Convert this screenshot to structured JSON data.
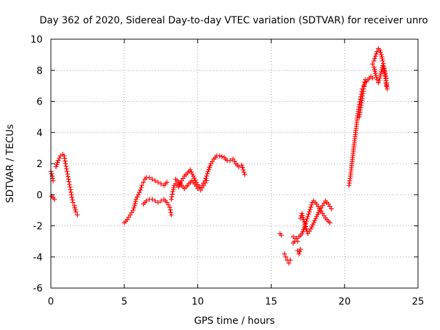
{
  "chart_data": {
    "type": "scatter",
    "title": "Day 362 of 2020, Sidereal Day-to-day VTEC variation (SDTVAR) for receiver unro",
    "xlabel": "GPS time / hours",
    "ylabel": "SDTVAR / TECUs",
    "xlim": [
      0,
      25
    ],
    "ylim": [
      -6,
      10
    ],
    "xticks": [
      0,
      5,
      10,
      15,
      20,
      25
    ],
    "yticks": [
      -6,
      -4,
      -2,
      0,
      2,
      4,
      6,
      8,
      10
    ],
    "grid": true,
    "marker": "+",
    "color": "#ff0000",
    "series": [
      {
        "name": "SDTVAR",
        "segments": [
          [
            [
              0.0,
              1.5
            ],
            [
              0.1,
              1.2
            ],
            [
              0.15,
              0.9
            ]
          ],
          [
            [
              0.05,
              -0.1
            ],
            [
              0.15,
              -0.2
            ],
            [
              0.25,
              -0.3
            ]
          ],
          [
            [
              0.35,
              1.8
            ],
            [
              0.5,
              2.2
            ],
            [
              0.65,
              2.5
            ],
            [
              0.8,
              2.6
            ],
            [
              0.9,
              2.5
            ],
            [
              1.0,
              2.0
            ],
            [
              1.1,
              1.5
            ],
            [
              1.2,
              1.0
            ],
            [
              1.3,
              0.5
            ],
            [
              1.4,
              0.0
            ],
            [
              1.5,
              -0.5
            ],
            [
              1.6,
              -0.7
            ],
            [
              1.7,
              -1.1
            ],
            [
              1.8,
              -1.3
            ]
          ],
          [
            [
              5.0,
              -1.8
            ],
            [
              5.2,
              -1.6
            ],
            [
              5.4,
              -1.3
            ],
            [
              5.6,
              -1.0
            ],
            [
              5.7,
              -0.7
            ],
            [
              5.8,
              -0.3
            ],
            [
              5.95,
              0.0
            ],
            [
              6.1,
              0.3
            ],
            [
              6.2,
              0.6
            ],
            [
              6.3,
              0.8
            ],
            [
              6.4,
              1.0
            ],
            [
              6.5,
              1.1
            ],
            [
              6.7,
              1.1
            ],
            [
              6.9,
              1.0
            ],
            [
              7.1,
              0.9
            ],
            [
              7.3,
              0.8
            ],
            [
              7.5,
              0.7
            ],
            [
              7.7,
              0.6
            ],
            [
              7.9,
              0.8
            ]
          ],
          [
            [
              6.3,
              -0.6
            ],
            [
              6.5,
              -0.4
            ],
            [
              6.7,
              -0.3
            ],
            [
              6.9,
              -0.3
            ],
            [
              7.1,
              -0.4
            ],
            [
              7.3,
              -0.5
            ],
            [
              7.5,
              -0.4
            ],
            [
              7.7,
              -0.3
            ],
            [
              7.9,
              -0.5
            ],
            [
              8.1,
              -0.8
            ],
            [
              8.2,
              -1.3
            ]
          ],
          [
            [
              8.2,
              -0.3
            ],
            [
              8.3,
              0.2
            ],
            [
              8.4,
              0.6
            ],
            [
              8.5,
              0.7
            ],
            [
              8.7,
              0.5
            ],
            [
              8.9,
              0.9
            ],
            [
              9.1,
              1.2
            ],
            [
              9.3,
              1.4
            ],
            [
              9.5,
              1.6
            ],
            [
              9.7,
              1.2
            ],
            [
              9.9,
              0.8
            ],
            [
              10.1,
              0.5
            ],
            [
              10.3,
              0.6
            ],
            [
              10.5,
              0.9
            ],
            [
              10.7,
              1.5
            ],
            [
              10.9,
              2.0
            ],
            [
              11.1,
              2.3
            ],
            [
              11.3,
              2.5
            ],
            [
              11.5,
              2.5
            ],
            [
              11.8,
              2.4
            ],
            [
              12.0,
              2.2
            ],
            [
              12.2,
              2.2
            ]
          ],
          [
            [
              8.5,
              1.0
            ],
            [
              8.7,
              0.8
            ],
            [
              8.9,
              0.6
            ],
            [
              9.1,
              0.4
            ],
            [
              9.3,
              0.6
            ],
            [
              9.6,
              0.9
            ],
            [
              9.8,
              0.7
            ],
            [
              10.0,
              0.4
            ],
            [
              10.2,
              0.3
            ],
            [
              10.4,
              0.6
            ],
            [
              10.6,
              0.9
            ]
          ],
          [
            [
              12.4,
              2.3
            ],
            [
              12.6,
              2.0
            ],
            [
              12.8,
              1.8
            ],
            [
              13.0,
              1.9
            ],
            [
              13.1,
              1.6
            ],
            [
              13.2,
              1.3
            ]
          ],
          [
            [
              15.6,
              -2.5
            ],
            [
              15.7,
              -2.6
            ]
          ],
          [
            [
              15.9,
              -3.8
            ],
            [
              16.0,
              -4.0
            ],
            [
              16.1,
              -4.2
            ],
            [
              16.2,
              -4.4
            ],
            [
              16.3,
              -4.2
            ]
          ],
          [
            [
              16.5,
              -3.1
            ],
            [
              16.6,
              -3.0
            ],
            [
              16.7,
              -2.8
            ],
            [
              16.8,
              -3.0
            ]
          ],
          [
            [
              16.5,
              -2.7
            ],
            [
              16.7,
              -2.8
            ],
            [
              16.9,
              -2.7
            ],
            [
              17.1,
              -2.5
            ],
            [
              17.3,
              -2.0
            ],
            [
              17.5,
              -1.4
            ],
            [
              17.7,
              -0.8
            ],
            [
              17.8,
              -0.5
            ],
            [
              17.9,
              -0.4
            ],
            [
              18.1,
              -0.6
            ],
            [
              18.3,
              -0.9
            ],
            [
              18.5,
              -1.2
            ],
            [
              18.7,
              -1.5
            ],
            [
              18.9,
              -1.7
            ],
            [
              19.0,
              -1.8
            ]
          ],
          [
            [
              16.8,
              -3.6
            ],
            [
              16.9,
              -3.8
            ],
            [
              17.0,
              -3.5
            ]
          ],
          [
            [
              17.0,
              -1.5
            ],
            [
              17.1,
              -1.2
            ],
            [
              17.2,
              -1.6
            ],
            [
              17.3,
              -1.9
            ],
            [
              17.5,
              -2.5
            ],
            [
              17.7,
              -2.2
            ],
            [
              17.9,
              -1.8
            ],
            [
              18.1,
              -1.4
            ],
            [
              18.3,
              -1.0
            ],
            [
              18.5,
              -0.7
            ],
            [
              18.7,
              -0.4
            ],
            [
              18.9,
              -0.6
            ],
            [
              19.1,
              -0.9
            ]
          ],
          [
            [
              20.3,
              0.6
            ],
            [
              20.4,
              1.2
            ],
            [
              20.5,
              2.0
            ],
            [
              20.6,
              2.8
            ],
            [
              20.7,
              3.6
            ],
            [
              20.8,
              4.4
            ],
            [
              20.9,
              5.2
            ],
            [
              21.0,
              5.8
            ],
            [
              21.1,
              6.3
            ],
            [
              21.2,
              6.8
            ],
            [
              21.3,
              7.0
            ],
            [
              21.4,
              7.2
            ],
            [
              21.5,
              7.3
            ],
            [
              21.6,
              7.4
            ],
            [
              21.7,
              7.5
            ],
            [
              21.8,
              7.6
            ],
            [
              21.9,
              7.5
            ]
          ],
          [
            [
              21.0,
              5.0
            ],
            [
              21.1,
              5.6
            ],
            [
              21.2,
              6.2
            ],
            [
              21.3,
              6.8
            ],
            [
              21.4,
              7.4
            ]
          ],
          [
            [
              21.9,
              8.4
            ],
            [
              22.0,
              8.2
            ],
            [
              22.1,
              7.8
            ],
            [
              22.2,
              7.4
            ],
            [
              22.3,
              7.2
            ],
            [
              22.4,
              7.5
            ],
            [
              22.5,
              7.9
            ],
            [
              22.6,
              8.3
            ],
            [
              22.7,
              8.0
            ],
            [
              22.8,
              7.5
            ],
            [
              22.85,
              7.0
            ]
          ],
          [
            [
              22.0,
              8.6
            ],
            [
              22.1,
              8.9
            ],
            [
              22.2,
              9.2
            ],
            [
              22.3,
              9.4
            ],
            [
              22.4,
              9.3
            ],
            [
              22.5,
              9.0
            ],
            [
              22.6,
              8.6
            ],
            [
              22.7,
              8.1
            ],
            [
              22.8,
              7.6
            ],
            [
              22.85,
              7.2
            ],
            [
              22.9,
              6.8
            ]
          ]
        ]
      }
    ]
  }
}
